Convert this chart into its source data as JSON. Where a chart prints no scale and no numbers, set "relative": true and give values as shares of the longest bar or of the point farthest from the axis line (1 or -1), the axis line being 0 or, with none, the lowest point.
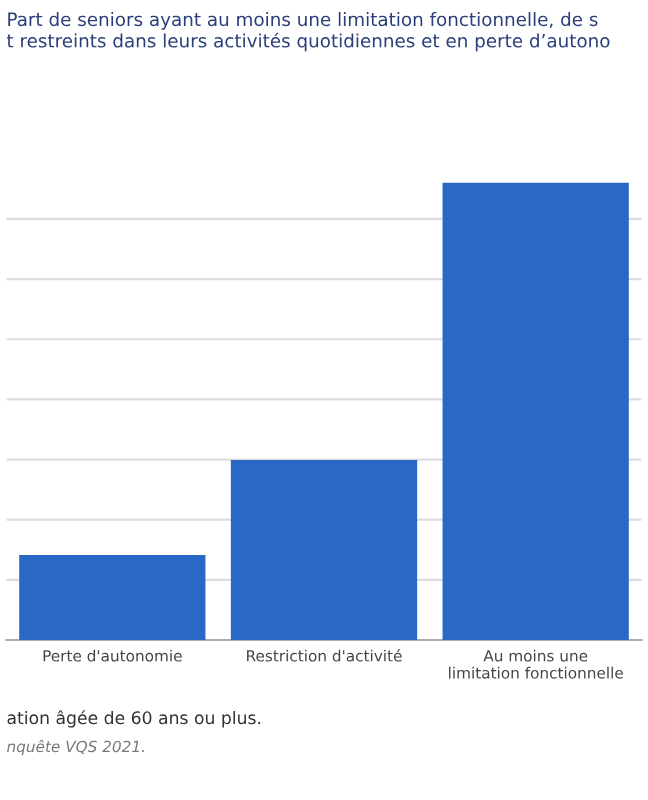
{
  "chart_data": {
    "type": "bar",
    "title": "Part de seniors ayant au moins une limitation fonctionnelle, de s\nt restreints dans leurs activités quotidiennes et en perte d’autono",
    "categories": [
      "Perte d'autonomie",
      "Restriction d'activité",
      "Au moins une\nlimitation fonctionnelle"
    ],
    "values": [
      0.186,
      0.394,
      1
    ],
    "color": "#2a68c8",
    "relative": true,
    "grid": "y",
    "annotations": [
      "ation âgée de 60 ans ou plus.",
      "nquête VQS 2021."
    ]
  }
}
